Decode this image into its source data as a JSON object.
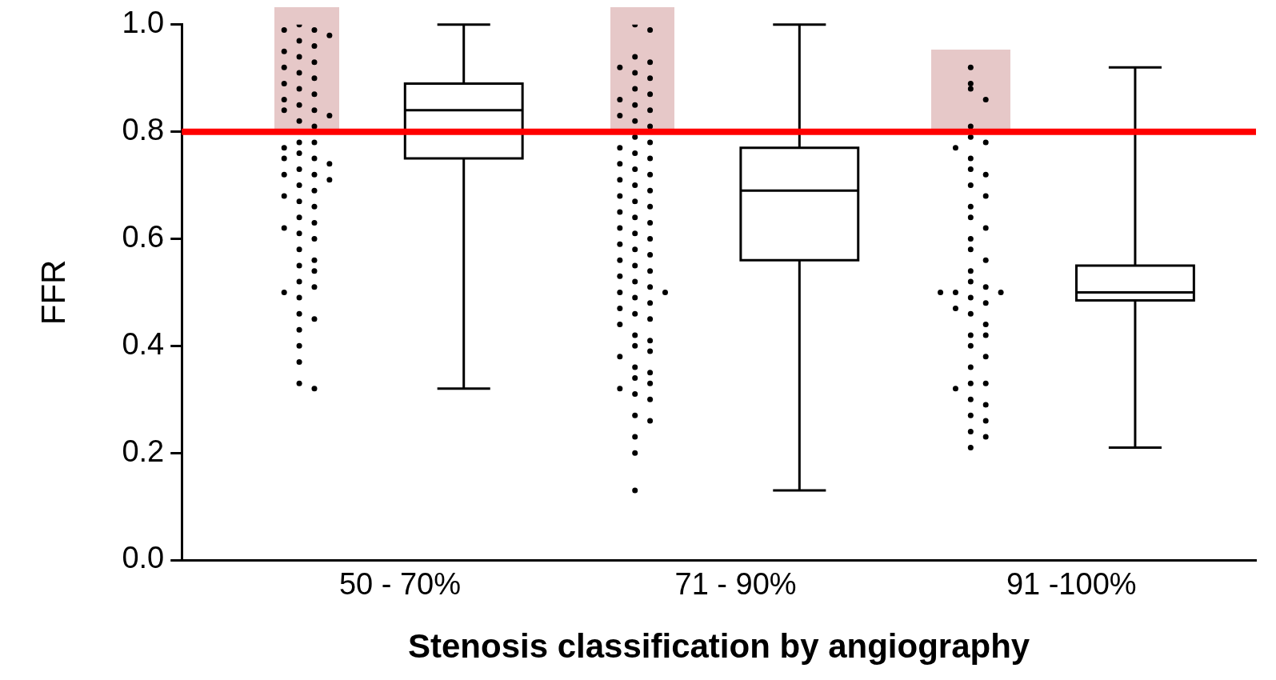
{
  "chart_data": {
    "type": "box",
    "xlabel": "Stenosis classification by angiography",
    "ylabel": "FFR",
    "categories": [
      "50 - 70%",
      "71 - 90%",
      "91 -100%"
    ],
    "boxes": [
      {
        "low": 0.32,
        "q1": 0.75,
        "median": 0.84,
        "q3": 0.89,
        "high": 1.0
      },
      {
        "low": 0.13,
        "q1": 0.56,
        "median": 0.69,
        "q3": 0.77,
        "high": 1.0
      },
      {
        "low": 0.21,
        "q1": 0.485,
        "median": 0.5,
        "q3": 0.55,
        "high": 0.92
      }
    ],
    "series": [
      {
        "type": "scatter",
        "color": "#000000",
        "x": [
          "50 - 70%",
          "50 - 70%",
          "50 - 70%",
          "50 - 70%",
          "50 - 70%",
          "50 - 70%",
          "50 - 70%",
          "50 - 70%",
          "50 - 70%",
          "50 - 70%",
          "50 - 70%",
          "50 - 70%",
          "50 - 70%",
          "50 - 70%",
          "50 - 70%",
          "50 - 70%",
          "50 - 70%",
          "50 - 70%",
          "50 - 70%",
          "50 - 70%",
          "50 - 70%",
          "50 - 70%",
          "50 - 70%",
          "50 - 70%",
          "50 - 70%",
          "50 - 70%",
          "50 - 70%",
          "50 - 70%",
          "50 - 70%",
          "50 - 70%",
          "50 - 70%",
          "50 - 70%",
          "50 - 70%",
          "50 - 70%",
          "50 - 70%",
          "50 - 70%",
          "50 - 70%",
          "50 - 70%",
          "50 - 70%",
          "50 - 70%",
          "50 - 70%",
          "50 - 70%",
          "50 - 70%",
          "50 - 70%",
          "50 - 70%",
          "50 - 70%",
          "50 - 70%",
          "50 - 70%",
          "50 - 70%",
          "50 - 70%",
          "50 - 70%",
          "50 - 70%",
          "50 - 70%",
          "50 - 70%",
          "50 - 70%",
          "50 - 70%",
          "50 - 70%",
          "50 - 70%"
        ],
        "values": [
          1.0,
          0.99,
          0.99,
          0.98,
          0.97,
          0.96,
          0.95,
          0.94,
          0.93,
          0.92,
          0.91,
          0.9,
          0.89,
          0.88,
          0.87,
          0.86,
          0.85,
          0.84,
          0.84,
          0.83,
          0.82,
          0.81,
          0.78,
          0.78,
          0.77,
          0.76,
          0.75,
          0.75,
          0.74,
          0.73,
          0.72,
          0.72,
          0.71,
          0.7,
          0.69,
          0.68,
          0.67,
          0.66,
          0.64,
          0.63,
          0.62,
          0.61,
          0.6,
          0.58,
          0.56,
          0.55,
          0.54,
          0.52,
          0.51,
          0.5,
          0.49,
          0.46,
          0.45,
          0.43,
          0.4,
          0.37,
          0.33,
          0.32
        ]
      },
      {
        "type": "scatter",
        "color": "#000000",
        "x": [
          "71 - 90%",
          "71 - 90%",
          "71 - 90%",
          "71 - 90%",
          "71 - 90%",
          "71 - 90%",
          "71 - 90%",
          "71 - 90%",
          "71 - 90%",
          "71 - 90%",
          "71 - 90%",
          "71 - 90%",
          "71 - 90%",
          "71 - 90%",
          "71 - 90%",
          "71 - 90%",
          "71 - 90%",
          "71 - 90%",
          "71 - 90%",
          "71 - 90%",
          "71 - 90%",
          "71 - 90%",
          "71 - 90%",
          "71 - 90%",
          "71 - 90%",
          "71 - 90%",
          "71 - 90%",
          "71 - 90%",
          "71 - 90%",
          "71 - 90%",
          "71 - 90%",
          "71 - 90%",
          "71 - 90%",
          "71 - 90%",
          "71 - 90%",
          "71 - 90%",
          "71 - 90%",
          "71 - 90%",
          "71 - 90%",
          "71 - 90%",
          "71 - 90%",
          "71 - 90%",
          "71 - 90%",
          "71 - 90%",
          "71 - 90%",
          "71 - 90%",
          "71 - 90%",
          "71 - 90%",
          "71 - 90%",
          "71 - 90%",
          "71 - 90%",
          "71 - 90%",
          "71 - 90%",
          "71 - 90%",
          "71 - 90%",
          "71 - 90%",
          "71 - 90%",
          "71 - 90%",
          "71 - 90%",
          "71 - 90%",
          "71 - 90%",
          "71 - 90%",
          "71 - 90%",
          "71 - 90%",
          "71 - 90%",
          "71 - 90%",
          "71 - 90%",
          "71 - 90%",
          "71 - 90%"
        ],
        "values": [
          1.0,
          0.99,
          0.94,
          0.93,
          0.92,
          0.91,
          0.9,
          0.88,
          0.87,
          0.86,
          0.85,
          0.84,
          0.83,
          0.82,
          0.81,
          0.79,
          0.78,
          0.77,
          0.76,
          0.75,
          0.74,
          0.73,
          0.72,
          0.71,
          0.7,
          0.69,
          0.68,
          0.67,
          0.66,
          0.65,
          0.64,
          0.63,
          0.62,
          0.61,
          0.6,
          0.59,
          0.58,
          0.57,
          0.56,
          0.55,
          0.54,
          0.53,
          0.52,
          0.51,
          0.5,
          0.5,
          0.49,
          0.48,
          0.47,
          0.46,
          0.45,
          0.44,
          0.42,
          0.41,
          0.4,
          0.39,
          0.38,
          0.36,
          0.35,
          0.34,
          0.33,
          0.32,
          0.31,
          0.3,
          0.27,
          0.26,
          0.23,
          0.2,
          0.13
        ]
      },
      {
        "type": "scatter",
        "color": "#000000",
        "x": [
          "91 -100%",
          "91 -100%",
          "91 -100%",
          "91 -100%",
          "91 -100%",
          "91 -100%",
          "91 -100%",
          "91 -100%",
          "91 -100%",
          "91 -100%",
          "91 -100%",
          "91 -100%",
          "91 -100%",
          "91 -100%",
          "91 -100%",
          "91 -100%",
          "91 -100%",
          "91 -100%",
          "91 -100%",
          "91 -100%",
          "91 -100%",
          "91 -100%",
          "91 -100%",
          "91 -100%",
          "91 -100%",
          "91 -100%",
          "91 -100%",
          "91 -100%",
          "91 -100%",
          "91 -100%",
          "91 -100%",
          "91 -100%",
          "91 -100%",
          "91 -100%",
          "91 -100%",
          "91 -100%",
          "91 -100%",
          "91 -100%",
          "91 -100%",
          "91 -100%",
          "91 -100%",
          "91 -100%",
          "91 -100%",
          "91 -100%",
          "91 -100%"
        ],
        "values": [
          0.92,
          0.89,
          0.88,
          0.86,
          0.81,
          0.79,
          0.78,
          0.77,
          0.75,
          0.73,
          0.72,
          0.7,
          0.68,
          0.66,
          0.64,
          0.62,
          0.6,
          0.58,
          0.56,
          0.54,
          0.52,
          0.51,
          0.5,
          0.5,
          0.5,
          0.49,
          0.48,
          0.47,
          0.46,
          0.44,
          0.42,
          0.42,
          0.4,
          0.38,
          0.36,
          0.33,
          0.33,
          0.32,
          0.3,
          0.29,
          0.27,
          0.26,
          0.24,
          0.23,
          0.21
        ]
      }
    ],
    "marker": "circle",
    "ref_lines": [
      {
        "axis": "y",
        "value": 0.8,
        "color": "#ff0000"
      }
    ],
    "ylim": [
      0,
      1
    ],
    "yticks": [
      {
        "value": 0,
        "label": "0.0"
      },
      {
        "value": 0.2,
        "label": "0.2"
      },
      {
        "value": 0.4,
        "label": "0.4"
      },
      {
        "value": 0.6,
        "label": "0.6"
      },
      {
        "value": 0.8,
        "label": "0.8"
      },
      {
        "value": 1,
        "label": "1.0"
      }
    ],
    "grid": false,
    "legend": false
  }
}
